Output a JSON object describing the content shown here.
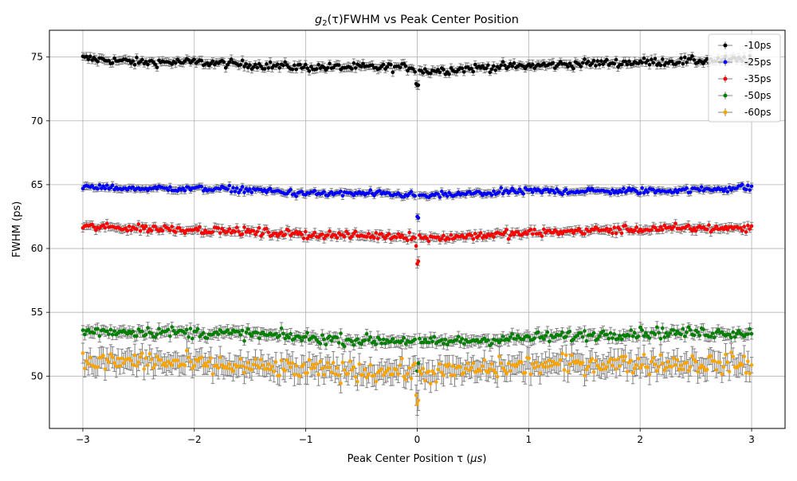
{
  "chart_data": {
    "type": "scatter",
    "title_main": "FWHM vs Peak Center Position",
    "title_math_base": "g",
    "title_math_sub": "2",
    "title_math_arg": "(τ)",
    "xlabel_text": "Peak Center Position τ",
    "xlabel_unit": "μs",
    "ylabel": "FWHM (ps)",
    "xlim": [
      -3.3,
      3.3
    ],
    "ylim": [
      45.9,
      77.1
    ],
    "x_ticks": [
      -3,
      -2,
      -1,
      0,
      1,
      2,
      3
    ],
    "y_ticks": [
      50,
      55,
      60,
      65,
      70,
      75
    ],
    "grid": true,
    "legend_position": "top-right",
    "error_bar_color": "#808080",
    "x_range": [
      -3,
      3
    ],
    "points_per_side": 180,
    "series": [
      {
        "name": "-10ps",
        "color": "#000000",
        "profile": [
          [
            -3.0,
            74.9
          ],
          [
            -2.5,
            74.6
          ],
          [
            -2.0,
            74.6
          ],
          [
            -1.5,
            74.4
          ],
          [
            -1.0,
            74.2
          ],
          [
            -0.5,
            74.2
          ],
          [
            -0.05,
            74.2
          ],
          [
            0.05,
            73.9
          ],
          [
            0.3,
            74.0
          ],
          [
            0.6,
            74.2
          ],
          [
            1.0,
            74.3
          ],
          [
            1.5,
            74.5
          ],
          [
            2.0,
            74.6
          ],
          [
            2.5,
            74.7
          ],
          [
            3.0,
            74.8
          ]
        ],
        "noise": 0.28,
        "error": 0.3,
        "dip_points": [
          [
            0.0,
            72.8
          ],
          [
            -0.01,
            72.9
          ],
          [
            0.01,
            72.8
          ]
        ]
      },
      {
        "name": "-25ps",
        "color": "#0000ff",
        "profile": [
          [
            -3.0,
            64.8
          ],
          [
            -2.5,
            64.7
          ],
          [
            -2.0,
            64.7
          ],
          [
            -1.5,
            64.6
          ],
          [
            -1.0,
            64.3
          ],
          [
            -0.5,
            64.3
          ],
          [
            -0.05,
            64.2
          ],
          [
            0.05,
            64.1
          ],
          [
            0.5,
            64.3
          ],
          [
            1.0,
            64.5
          ],
          [
            1.5,
            64.5
          ],
          [
            2.0,
            64.5
          ],
          [
            2.5,
            64.6
          ],
          [
            3.0,
            64.8
          ]
        ],
        "noise": 0.22,
        "error": 0.25,
        "dip_points": [
          [
            0.0,
            62.5
          ],
          [
            0.01,
            62.4
          ]
        ]
      },
      {
        "name": "-35ps",
        "color": "#ff0000",
        "profile": [
          [
            -3.0,
            61.7
          ],
          [
            -2.5,
            61.6
          ],
          [
            -2.0,
            61.5
          ],
          [
            -1.5,
            61.3
          ],
          [
            -1.0,
            61.1
          ],
          [
            -0.5,
            61.0
          ],
          [
            -0.05,
            61.0
          ],
          [
            0.05,
            60.8
          ],
          [
            0.5,
            61.0
          ],
          [
            1.0,
            61.2
          ],
          [
            1.5,
            61.4
          ],
          [
            2.0,
            61.5
          ],
          [
            2.5,
            61.6
          ],
          [
            3.0,
            61.6
          ]
        ],
        "noise": 0.28,
        "error": 0.3,
        "dip_points": [
          [
            0.0,
            58.8
          ],
          [
            0.01,
            59.0
          ],
          [
            -0.01,
            60.2
          ]
        ]
      },
      {
        "name": "-50ps",
        "color": "#008000",
        "profile": [
          [
            -3.0,
            53.5
          ],
          [
            -2.5,
            53.5
          ],
          [
            -2.0,
            53.4
          ],
          [
            -1.5,
            53.3
          ],
          [
            -1.0,
            53.0
          ],
          [
            -0.5,
            52.8
          ],
          [
            -0.05,
            52.8
          ],
          [
            0.05,
            52.6
          ],
          [
            0.5,
            52.8
          ],
          [
            1.0,
            53.0
          ],
          [
            1.5,
            53.2
          ],
          [
            2.0,
            53.4
          ],
          [
            2.5,
            53.4
          ],
          [
            3.0,
            53.4
          ]
        ],
        "noise": 0.38,
        "error": 0.4,
        "dip_points": [
          [
            0.0,
            50.4
          ],
          [
            0.01,
            51.0
          ]
        ]
      },
      {
        "name": "-60ps",
        "color": "#ffa500",
        "profile": [
          [
            -3.0,
            51.0
          ],
          [
            -2.5,
            51.2
          ],
          [
            -2.0,
            50.9
          ],
          [
            -1.5,
            50.7
          ],
          [
            -1.0,
            50.5
          ],
          [
            -0.5,
            50.4
          ],
          [
            -0.05,
            50.4
          ],
          [
            0.05,
            50.2
          ],
          [
            0.5,
            50.5
          ],
          [
            1.0,
            50.8
          ],
          [
            1.5,
            51.0
          ],
          [
            2.0,
            51.0
          ],
          [
            2.5,
            51.0
          ],
          [
            3.0,
            50.9
          ]
        ],
        "noise": 0.7,
        "error": 0.75,
        "dip_points": [
          [
            0.0,
            47.8
          ],
          [
            0.01,
            48.1
          ],
          [
            -0.01,
            48.5
          ]
        ]
      }
    ]
  }
}
